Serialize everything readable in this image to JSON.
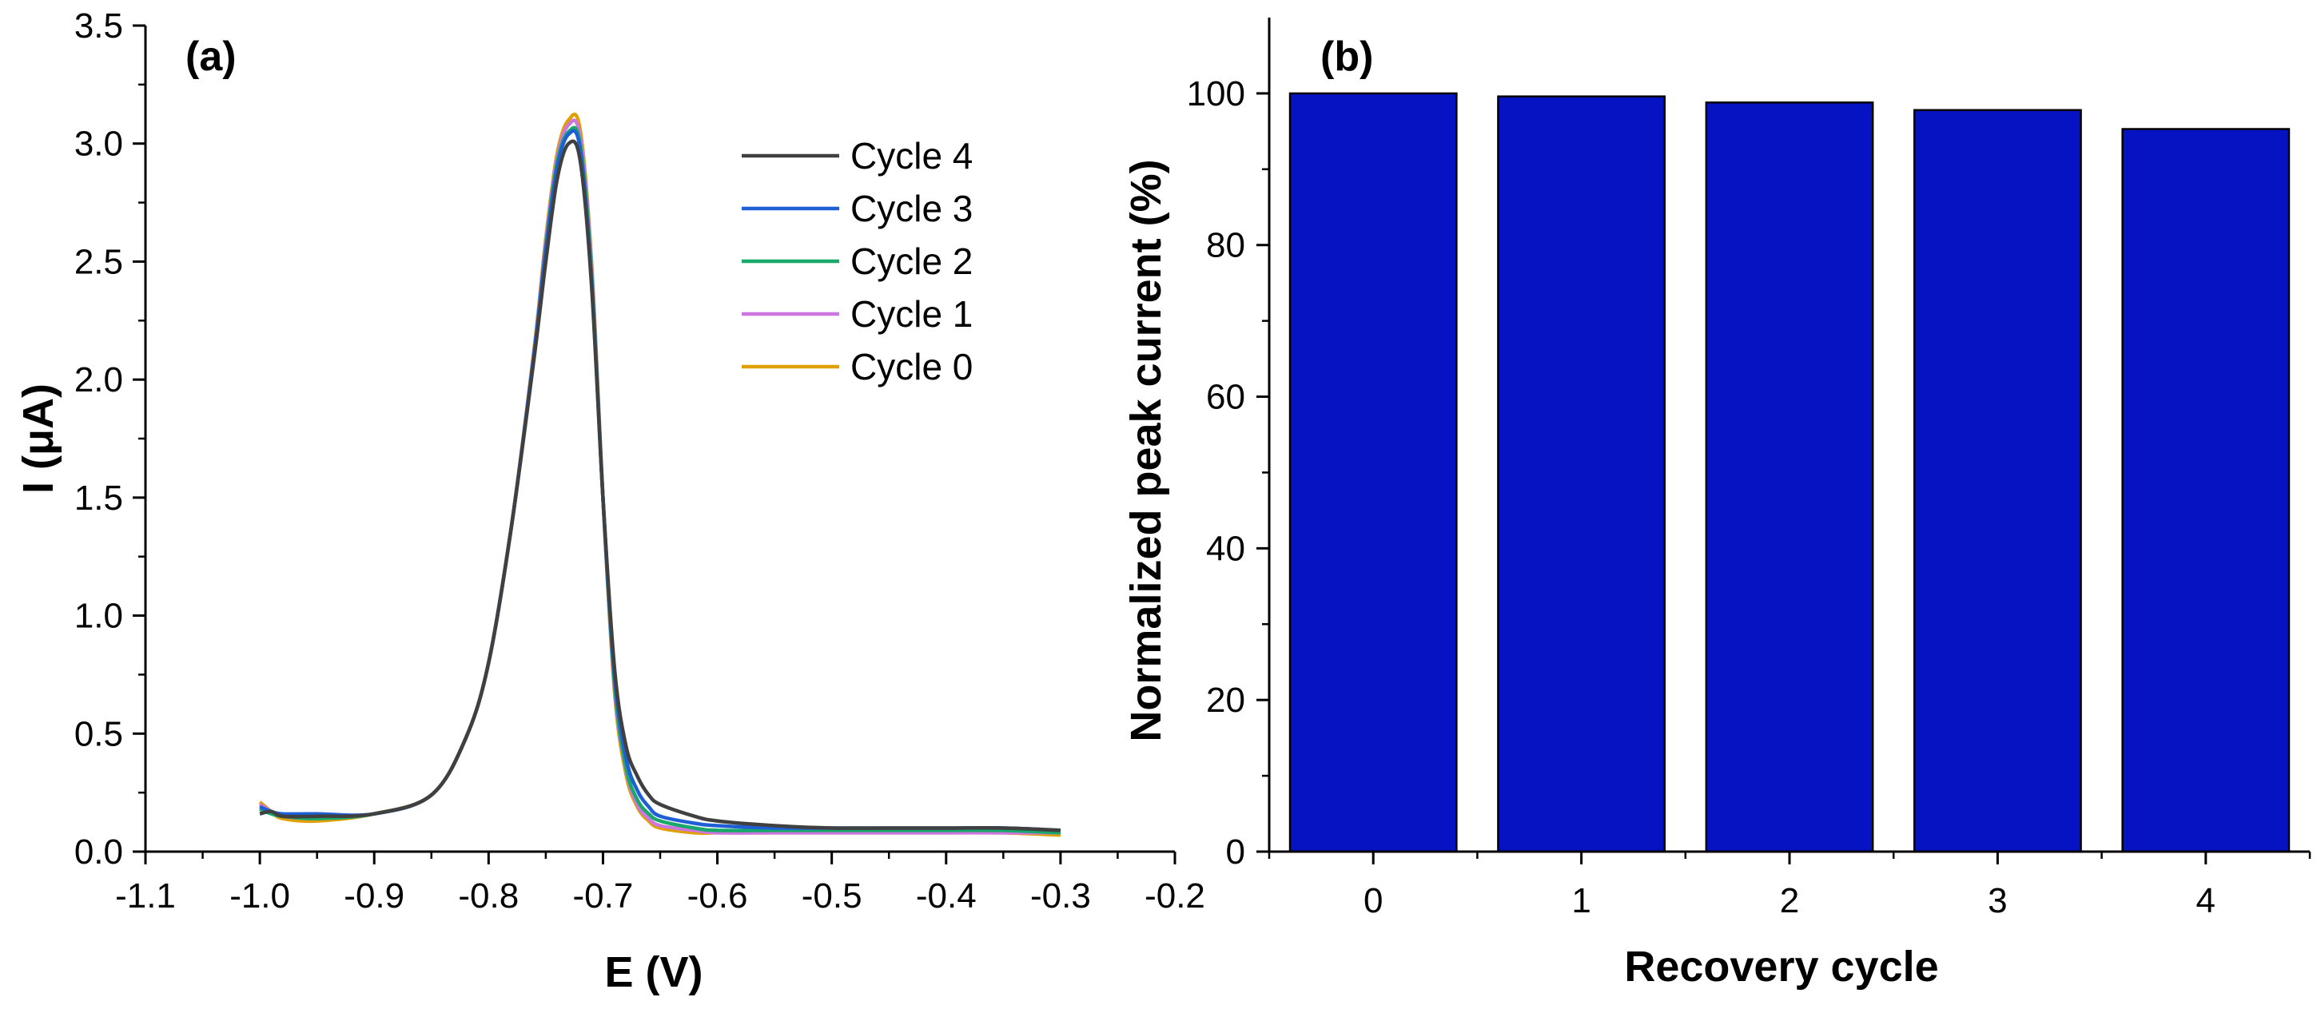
{
  "chart_data": [
    {
      "panel_label": "(a)",
      "type": "line",
      "xlabel": "E (V)",
      "ylabel": "I (μA)",
      "xlim": [
        -1.1,
        -0.2
      ],
      "ylim": [
        0,
        3.5
      ],
      "xticks": [
        -1.1,
        -1.0,
        -0.9,
        -0.8,
        -0.7,
        -0.6,
        -0.5,
        -0.4,
        -0.3,
        -0.2
      ],
      "xtick_labels": [
        "-1.1",
        "-1.0",
        "-0.9",
        "-0.8",
        "-0.7",
        "-0.6",
        "-0.5",
        "-0.4",
        "-0.3",
        "-0.2"
      ],
      "yticks": [
        0,
        0.5,
        1.0,
        1.5,
        2.0,
        2.5,
        3.0,
        3.5
      ],
      "ytick_labels": [
        "0.0",
        "0.5",
        "1.0",
        "1.5",
        "2.0",
        "2.5",
        "3.0",
        "3.5"
      ],
      "grid": false,
      "legend_position": "top-right",
      "series": [
        {
          "name": "Cycle 4",
          "color": "#404040",
          "x": [
            -1.0,
            -0.99,
            -0.98,
            -0.95,
            -0.9,
            -0.85,
            -0.82,
            -0.8,
            -0.78,
            -0.76,
            -0.75,
            -0.74,
            -0.73,
            -0.72,
            -0.71,
            -0.7,
            -0.69,
            -0.68,
            -0.67,
            -0.66,
            -0.65,
            -0.62,
            -0.6,
            -0.55,
            -0.5,
            -0.45,
            -0.4,
            -0.35,
            -0.3
          ],
          "y": [
            0.16,
            0.17,
            0.15,
            0.15,
            0.16,
            0.24,
            0.48,
            0.8,
            1.38,
            2.1,
            2.5,
            2.85,
            3.0,
            2.93,
            2.4,
            1.5,
            0.78,
            0.45,
            0.32,
            0.24,
            0.2,
            0.15,
            0.13,
            0.11,
            0.1,
            0.1,
            0.1,
            0.1,
            0.09
          ]
        },
        {
          "name": "Cycle 3",
          "color": "#1f5fd6",
          "x": [
            -1.0,
            -0.99,
            -0.98,
            -0.95,
            -0.9,
            -0.85,
            -0.82,
            -0.8,
            -0.78,
            -0.76,
            -0.75,
            -0.74,
            -0.73,
            -0.72,
            -0.71,
            -0.7,
            -0.69,
            -0.68,
            -0.67,
            -0.66,
            -0.65,
            -0.62,
            -0.6,
            -0.55,
            -0.5,
            -0.45,
            -0.4,
            -0.35,
            -0.3
          ],
          "y": [
            0.19,
            0.17,
            0.16,
            0.16,
            0.16,
            0.24,
            0.48,
            0.8,
            1.38,
            2.12,
            2.55,
            2.9,
            3.04,
            2.98,
            2.42,
            1.5,
            0.75,
            0.4,
            0.26,
            0.19,
            0.15,
            0.12,
            0.11,
            0.1,
            0.1,
            0.1,
            0.1,
            0.1,
            0.09
          ]
        },
        {
          "name": "Cycle 2",
          "color": "#17a86a",
          "x": [
            -1.0,
            -0.99,
            -0.98,
            -0.95,
            -0.9,
            -0.85,
            -0.82,
            -0.8,
            -0.78,
            -0.76,
            -0.75,
            -0.74,
            -0.73,
            -0.72,
            -0.71,
            -0.7,
            -0.69,
            -0.68,
            -0.67,
            -0.66,
            -0.65,
            -0.62,
            -0.6,
            -0.55,
            -0.5,
            -0.45,
            -0.4,
            -0.35,
            -0.3
          ],
          "y": [
            0.18,
            0.16,
            0.15,
            0.14,
            0.16,
            0.24,
            0.48,
            0.8,
            1.38,
            2.12,
            2.56,
            2.92,
            3.05,
            3.0,
            2.45,
            1.5,
            0.72,
            0.36,
            0.22,
            0.16,
            0.13,
            0.1,
            0.09,
            0.09,
            0.09,
            0.09,
            0.09,
            0.09,
            0.08
          ]
        },
        {
          "name": "Cycle 1",
          "color": "#cc77e0",
          "x": [
            -1.0,
            -0.99,
            -0.98,
            -0.95,
            -0.9,
            -0.85,
            -0.82,
            -0.8,
            -0.78,
            -0.76,
            -0.75,
            -0.74,
            -0.73,
            -0.72,
            -0.71,
            -0.7,
            -0.69,
            -0.68,
            -0.67,
            -0.66,
            -0.65,
            -0.62,
            -0.6,
            -0.55,
            -0.5,
            -0.45,
            -0.4,
            -0.35,
            -0.3
          ],
          "y": [
            0.2,
            0.17,
            0.15,
            0.14,
            0.16,
            0.24,
            0.48,
            0.8,
            1.38,
            2.13,
            2.58,
            2.94,
            3.08,
            3.03,
            2.48,
            1.5,
            0.7,
            0.35,
            0.2,
            0.14,
            0.11,
            0.09,
            0.08,
            0.08,
            0.08,
            0.08,
            0.08,
            0.08,
            0.08
          ]
        },
        {
          "name": "Cycle 0",
          "color": "#e0a100",
          "x": [
            -1.0,
            -0.99,
            -0.98,
            -0.95,
            -0.9,
            -0.85,
            -0.82,
            -0.8,
            -0.78,
            -0.76,
            -0.75,
            -0.74,
            -0.73,
            -0.72,
            -0.71,
            -0.7,
            -0.69,
            -0.68,
            -0.67,
            -0.66,
            -0.65,
            -0.62,
            -0.6,
            -0.55,
            -0.5,
            -0.45,
            -0.4,
            -0.35,
            -0.3
          ],
          "y": [
            0.21,
            0.17,
            0.14,
            0.13,
            0.16,
            0.24,
            0.48,
            0.8,
            1.38,
            2.14,
            2.6,
            2.96,
            3.1,
            3.06,
            2.5,
            1.5,
            0.68,
            0.33,
            0.19,
            0.13,
            0.1,
            0.08,
            0.08,
            0.08,
            0.08,
            0.08,
            0.08,
            0.08,
            0.07
          ]
        }
      ]
    },
    {
      "panel_label": "(b)",
      "type": "bar",
      "xlabel": "Recovery cycle",
      "ylabel": "Normalized peak current (%)",
      "categories": [
        "0",
        "1",
        "2",
        "3",
        "4"
      ],
      "values": [
        100,
        99.6,
        98.8,
        97.8,
        95.3
      ],
      "ylim": [
        0,
        110
      ],
      "yticks": [
        0,
        20,
        40,
        60,
        80,
        100
      ],
      "ytick_labels": [
        "0",
        "20",
        "40",
        "60",
        "80",
        "100"
      ],
      "bar_color": "#0613c2",
      "grid": false
    }
  ]
}
